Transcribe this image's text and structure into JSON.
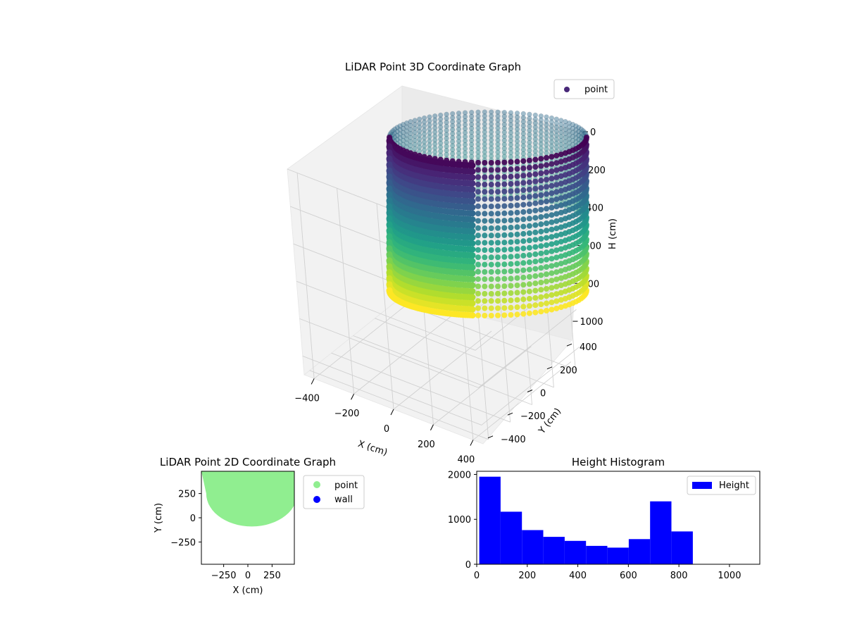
{
  "figure": {
    "background": "#ffffff"
  },
  "chart_data": [
    {
      "id": "scatter3d",
      "type": "scatter",
      "title": "LiDAR Point 3D Coordinate Graph",
      "xlabel": "X (cm)",
      "ylabel": "Y (cm)",
      "zlabel": "H (cm)",
      "x_ticks": [
        "−400",
        "−200",
        "0",
        "200",
        "400"
      ],
      "y_ticks": [
        "400",
        "200",
        "0",
        "−200",
        "−400"
      ],
      "z_ticks": [
        "0",
        "200",
        "400",
        "600",
        "800",
        "1000"
      ],
      "xlim": [
        -450,
        450
      ],
      "ylim": [
        -450,
        450
      ],
      "zlim": [
        1100,
        0
      ],
      "series": [
        {
          "name": "point",
          "color": "#482878"
        }
      ],
      "colormap": "viridis",
      "grid": true,
      "legend": "top-right",
      "shape": {
        "description_type": "cylindrical wall of points, radius ≈ 450 cm, heights 0–850 cm, colored by height",
        "radius": 450,
        "height_range": [
          0,
          850
        ]
      }
    },
    {
      "id": "scatter2d",
      "type": "scatter",
      "title": "LiDAR Point 2D Coordinate Graph",
      "xlabel": "X (cm)",
      "ylabel": "Y (cm)",
      "x_ticks": [
        "−250",
        "0",
        "250"
      ],
      "y_ticks": [
        "250",
        "0",
        "−250"
      ],
      "xlim": [
        -480,
        480
      ],
      "ylim": [
        -480,
        480
      ],
      "series": [
        {
          "name": "point",
          "color": "#90ee90"
        },
        {
          "name": "wall",
          "color": "#0000ff"
        }
      ],
      "legend": "outside-right"
    },
    {
      "id": "histogram",
      "type": "bar",
      "title": "Height Histogram",
      "x_ticks": [
        "0",
        "200",
        "400",
        "600",
        "800",
        "1000"
      ],
      "y_ticks": [
        "0",
        "1000",
        "2000"
      ],
      "xlim": [
        0,
        1120
      ],
      "ylim": [
        0,
        2070
      ],
      "bin_edges": [
        10,
        94.5,
        179,
        263.5,
        348,
        432.5,
        517,
        601.5,
        686,
        770.5,
        855
      ],
      "values": [
        1950,
        1170,
        760,
        610,
        520,
        410,
        370,
        560,
        1400,
        730
      ],
      "series": [
        {
          "name": "Height",
          "color": "#0000ff"
        }
      ],
      "legend": "top-right"
    }
  ]
}
